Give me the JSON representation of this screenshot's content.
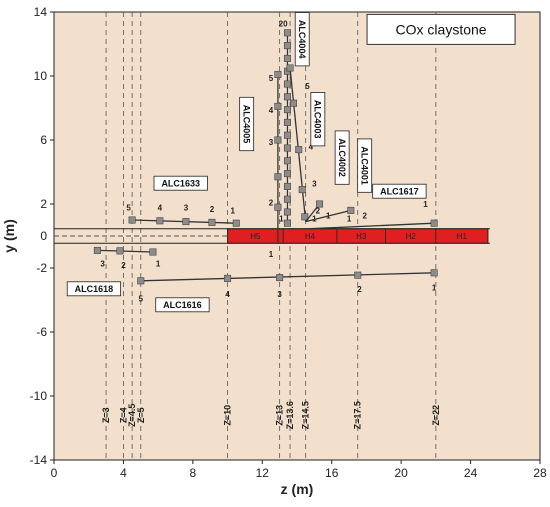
{
  "figure": {
    "title_box": "COx claystone",
    "xlabel": "z (m)",
    "ylabel": "y (m)",
    "xticks": [
      0,
      4,
      8,
      12,
      16,
      20,
      24,
      28
    ],
    "yticks": [
      14,
      10,
      6,
      2,
      -2,
      -6,
      -10,
      -14
    ],
    "xlim": [
      0,
      28
    ],
    "ylim": [
      -14,
      14
    ],
    "colors": {
      "background": "#f2e0cd",
      "tunnel": "#e02020",
      "borehole": "#333333",
      "sensor": "#8c8c8c"
    },
    "tunnel": {
      "z_start": 10.0,
      "z_end": 25.0,
      "y_top": 0.45,
      "y_bottom": -0.45,
      "sections": [
        {
          "label": "H5",
          "z_from": 10.0,
          "z_to": 13.2
        },
        {
          "label": "H4",
          "z_from": 13.2,
          "z_to": 16.3
        },
        {
          "label": "H3",
          "z_from": 16.3,
          "z_to": 19.1
        },
        {
          "label": "H2",
          "z_from": 19.1,
          "z_to": 22.0
        },
        {
          "label": "H1",
          "z_from": 22.0,
          "z_to": 25.0
        }
      ]
    },
    "z_lines": [
      {
        "z": 3,
        "label": "Z=3"
      },
      {
        "z": 4,
        "label": "Z=4"
      },
      {
        "z": 4.5,
        "label": "Z=4.5"
      },
      {
        "z": 5,
        "label": "Z=5"
      },
      {
        "z": 10,
        "label": "Z=10"
      },
      {
        "z": 13,
        "label": "Z=13"
      },
      {
        "z": 13.6,
        "label": "Z=13.6"
      },
      {
        "z": 14.5,
        "label": "Z=14.5"
      },
      {
        "z": 17.5,
        "label": "Z=17.5"
      },
      {
        "z": 22,
        "label": "Z=22"
      }
    ],
    "boreholes": [
      {
        "name": "ALC1633",
        "line": [
          [
            4.5,
            1.0
          ],
          [
            10.5,
            0.8
          ]
        ],
        "points": [
          [
            4.5,
            1.0
          ],
          [
            6.1,
            0.95
          ],
          [
            7.6,
            0.9
          ],
          [
            9.1,
            0.85
          ],
          [
            10.5,
            0.8
          ]
        ],
        "labels": [
          {
            "text": "5",
            "z": 4.3,
            "y": 1.6
          },
          {
            "text": "4",
            "z": 6.1,
            "y": 1.6
          },
          {
            "text": "3",
            "z": 7.6,
            "y": 1.6
          },
          {
            "text": "2",
            "z": 9.1,
            "y": 1.5
          },
          {
            "text": "1",
            "z": 10.3,
            "y": 1.4
          }
        ],
        "tag": {
          "z": 7.3,
          "y": 3.3,
          "rotated": false
        }
      },
      {
        "name": "ALC1618",
        "line": [
          [
            2.5,
            -0.9
          ],
          [
            5.7,
            -1.0
          ]
        ],
        "points": [
          [
            2.5,
            -0.9
          ],
          [
            3.8,
            -0.93
          ],
          [
            5.7,
            -1.0
          ]
        ],
        "labels": [
          {
            "text": "3",
            "z": 2.8,
            "y": -1.9
          },
          {
            "text": "2",
            "z": 4.0,
            "y": -2.0
          },
          {
            "text": "1",
            "z": 6.0,
            "y": -1.9
          }
        ],
        "tag": {
          "z": 2.3,
          "y": -3.3,
          "rotated": false
        }
      },
      {
        "name": "ALC1616",
        "line": [
          [
            5.0,
            -2.8
          ],
          [
            21.9,
            -2.3
          ]
        ],
        "points": [
          [
            5.0,
            -2.8
          ],
          [
            10.0,
            -2.65
          ],
          [
            13.0,
            -2.6
          ],
          [
            17.5,
            -2.45
          ],
          [
            21.9,
            -2.3
          ]
        ],
        "labels": [
          {
            "text": "5",
            "z": 5.0,
            "y": -4.1
          },
          {
            "text": "4",
            "z": 10.0,
            "y": -3.8
          },
          {
            "text": "3",
            "z": 13.0,
            "y": -3.8
          },
          {
            "text": "2",
            "z": 17.6,
            "y": -3.5
          },
          {
            "text": "1",
            "z": 21.9,
            "y": -3.4
          }
        ],
        "tag": {
          "z": 7.4,
          "y": -4.3,
          "rotated": false
        }
      },
      {
        "name": "ALC1617",
        "line": [
          [
            14.6,
            0.45
          ],
          [
            21.9,
            0.8
          ]
        ],
        "points": [
          [
            21.9,
            0.8
          ]
        ],
        "labels": [
          {
            "text": "2",
            "z": 17.9,
            "y": 1.1
          },
          {
            "text": "1",
            "z": 21.4,
            "y": 1.8
          }
        ],
        "tag": {
          "z": 19.9,
          "y": 2.8,
          "rotated": false
        }
      },
      {
        "name": "ALC4004",
        "line": [
          [
            13.45,
            0.6
          ],
          [
            13.45,
            12.7
          ]
        ],
        "points": [
          [
            13.45,
            12.7
          ],
          [
            13.45,
            11.9
          ],
          [
            13.45,
            11.1
          ],
          [
            13.45,
            10.3
          ],
          [
            13.45,
            9.5
          ],
          [
            13.45,
            8.7
          ],
          [
            13.45,
            7.9
          ],
          [
            13.45,
            7.1
          ],
          [
            13.45,
            6.3
          ],
          [
            13.45,
            5.5
          ],
          [
            13.45,
            4.7
          ],
          [
            13.45,
            3.9
          ],
          [
            13.45,
            3.1
          ],
          [
            13.45,
            2.3
          ],
          [
            13.45,
            1.5
          ],
          [
            13.45,
            0.8
          ]
        ],
        "labels": [
          {
            "text": "20",
            "z": 13.2,
            "y": 13.1
          },
          {
            "text": "1",
            "z": 13.1,
            "y": 0.9
          }
        ],
        "tag": {
          "z": 14.3,
          "y": 12.3,
          "rotated": true
        }
      },
      {
        "name": "ALC4005",
        "line": [
          [
            12.9,
            -0.45
          ],
          [
            12.9,
            10.1
          ]
        ],
        "points": [
          [
            12.9,
            10.1
          ],
          [
            12.9,
            8.1
          ],
          [
            12.9,
            6.0
          ],
          [
            12.9,
            3.7
          ],
          [
            12.9,
            1.8
          ]
        ],
        "labels": [
          {
            "text": "5",
            "z": 12.5,
            "y": 9.7
          },
          {
            "text": "4",
            "z": 12.5,
            "y": 7.7
          },
          {
            "text": "3",
            "z": 12.5,
            "y": 5.7
          },
          {
            "text": "2",
            "z": 12.5,
            "y": 1.9
          },
          {
            "text": "1",
            "z": 12.5,
            "y": -1.3
          }
        ],
        "tag": {
          "z": 11.1,
          "y": 7.0,
          "rotated": true
        }
      },
      {
        "name": "ALC4003",
        "line": [
          [
            13.6,
            10.5
          ],
          [
            14.5,
            0.9
          ]
        ],
        "points": [
          [
            13.6,
            10.5
          ],
          [
            13.8,
            8.3
          ],
          [
            14.1,
            5.4
          ],
          [
            14.3,
            2.9
          ],
          [
            14.45,
            1.2
          ]
        ],
        "labels": [
          {
            "text": "5",
            "z": 14.6,
            "y": 9.2
          },
          {
            "text": "4",
            "z": 14.8,
            "y": 5.4
          },
          {
            "text": "3",
            "z": 15.0,
            "y": 3.1
          },
          {
            "text": "2",
            "z": 15.2,
            "y": 1.4
          },
          {
            "text": "1",
            "z": 15.0,
            "y": 0.9
          }
        ],
        "tag": {
          "z": 15.2,
          "y": 7.3,
          "rotated": true
        }
      },
      {
        "name": "ALC4002",
        "line": [
          [
            14.5,
            0.9
          ],
          [
            15.3,
            2.0
          ]
        ],
        "points": [
          [
            15.3,
            2.0
          ]
        ],
        "labels": [
          {
            "text": "1",
            "z": 15.8,
            "y": 1.1
          }
        ],
        "tag": {
          "z": 16.6,
          "y": 4.9,
          "rotated": true
        }
      },
      {
        "name": "ALC4001",
        "line": [
          [
            14.5,
            0.9
          ],
          [
            17.1,
            1.6
          ]
        ],
        "points": [
          [
            17.1,
            1.6
          ]
        ],
        "labels": [
          {
            "text": "1",
            "z": 17.0,
            "y": 0.9
          }
        ],
        "tag": {
          "z": 17.9,
          "y": 4.4,
          "rotated": true
        }
      }
    ],
    "origin_marks": [
      "0"
    ]
  }
}
